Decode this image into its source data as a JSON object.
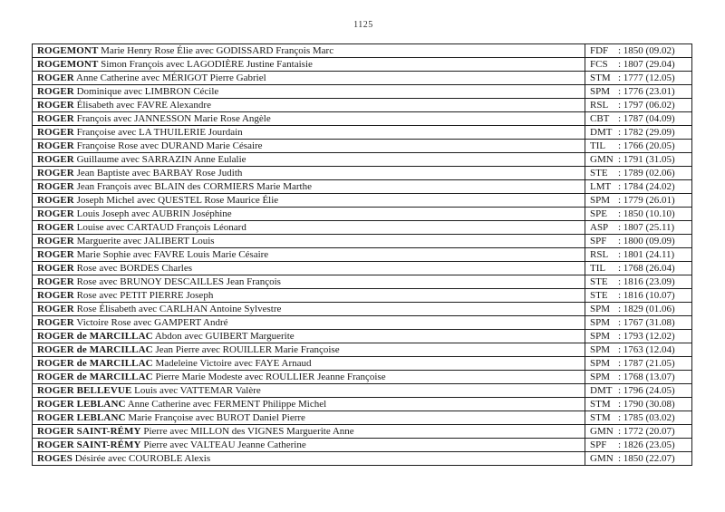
{
  "page": {
    "number": "1125"
  },
  "table": {
    "rows": [
      {
        "entry_bold": "ROGEMONT",
        "entry_rest": "Marie Henry Rose Élie avec GODISSARD François Marc",
        "code": "FDF",
        "ref": ": 1850 (09.02)"
      },
      {
        "entry_bold": "ROGEMONT",
        "entry_rest": "Simon François avec LAGODIÈRE Justine Fantaisie",
        "code": "FCS",
        "ref": ": 1807 (29.04)"
      },
      {
        "entry_bold": "ROGER",
        "entry_rest": "Anne Catherine avec MÉRIGOT Pierre Gabriel",
        "code": "STM",
        "ref": ": 1777 (12.05)"
      },
      {
        "entry_bold": "ROGER",
        "entry_rest": "Dominique avec LIMBRON Cécile",
        "code": "SPM",
        "ref": ": 1776 (23.01)"
      },
      {
        "entry_bold": "ROGER",
        "entry_rest": "Élisabeth avec FAVRE Alexandre",
        "code": "RSL",
        "ref": ": 1797 (06.02)"
      },
      {
        "entry_bold": "ROGER",
        "entry_rest": "François avec JANNESSON Marie Rose Angèle",
        "code": "CBT",
        "ref": ": 1787 (04.09)"
      },
      {
        "entry_bold": "ROGER",
        "entry_rest": "Françoise avec LA THUILERIE Jourdain",
        "code": "DMT",
        "ref": ": 1782 (29.09)"
      },
      {
        "entry_bold": "ROGER",
        "entry_rest": "Françoise Rose avec DURAND Marie Césaire",
        "code": "TIL",
        "ref": ": 1766 (20.05)"
      },
      {
        "entry_bold": "ROGER",
        "entry_rest": "Guillaume avec SARRAZIN Anne Eulalie",
        "code": "GMN",
        "ref": ": 1791 (31.05)"
      },
      {
        "entry_bold": "ROGER",
        "entry_rest": "Jean Baptiste avec BARBAY Rose Judith",
        "code": "STE",
        "ref": ": 1789 (02.06)"
      },
      {
        "entry_bold": "ROGER",
        "entry_rest": "Jean François avec BLAIN des CORMIERS Marie Marthe",
        "code": "LMT",
        "ref": ": 1784 (24.02)"
      },
      {
        "entry_bold": "ROGER",
        "entry_rest": "Joseph Michel avec QUESTEL Rose Maurice Élie",
        "code": "SPM",
        "ref": ": 1779 (26.01)"
      },
      {
        "entry_bold": "ROGER",
        "entry_rest": "Louis Joseph avec AUBRIN Joséphine",
        "code": "SPE",
        "ref": ": 1850 (10.10)"
      },
      {
        "entry_bold": "ROGER",
        "entry_rest": "Louise avec CARTAUD François Léonard",
        "code": "ASP",
        "ref": ": 1807 (25.11)"
      },
      {
        "entry_bold": "ROGER",
        "entry_rest": "Marguerite avec JALIBERT Louis",
        "code": "SPF",
        "ref": ": 1800 (09.09)"
      },
      {
        "entry_bold": "ROGER",
        "entry_rest": "Marie Sophie avec FAVRE Louis Marie Césaire",
        "code": "RSL",
        "ref": ": 1801 (24.11)"
      },
      {
        "entry_bold": "ROGER",
        "entry_rest": "Rose avec BORDES Charles",
        "code": "TIL",
        "ref": ": 1768 (26.04)"
      },
      {
        "entry_bold": "ROGER",
        "entry_rest": "Rose avec BRUNOY DESCAILLES Jean François",
        "code": "STE",
        "ref": ": 1816 (23.09)"
      },
      {
        "entry_bold": "ROGER",
        "entry_rest": "Rose avec PETIT PIERRE Joseph",
        "code": "STE",
        "ref": ": 1816 (10.07)"
      },
      {
        "entry_bold": "ROGER",
        "entry_rest": "Rose Élisabeth avec CARLHAN Antoine Sylvestre",
        "code": "SPM",
        "ref": ": 1829 (01.06)"
      },
      {
        "entry_bold": "ROGER",
        "entry_rest": "Victoire Rose avec GAMPERT André",
        "code": "SPM",
        "ref": ": 1767 (31.08)"
      },
      {
        "entry_bold": "ROGER de MARCILLAC",
        "entry_rest": "Abdon avec GUIBERT Marguerite",
        "code": "SPM",
        "ref": ": 1793 (12.02)"
      },
      {
        "entry_bold": "ROGER de MARCILLAC",
        "entry_rest": "Jean Pierre avec ROUILLER Marie Françoise",
        "code": "SPM",
        "ref": ": 1763 (12.04)"
      },
      {
        "entry_bold": "ROGER de MARCILLAC",
        "entry_rest": "Madeleine Victoire avec FAYE Arnaud",
        "code": "SPM",
        "ref": ": 1787 (21.05)"
      },
      {
        "entry_bold": "ROGER de MARCILLAC",
        "entry_rest": "Pierre Marie Modeste avec ROULLIER Jeanne Françoise",
        "code": "SPM",
        "ref": ": 1768 (13.07)"
      },
      {
        "entry_bold": "ROGER BELLEVUE",
        "entry_rest": "Louis avec VATTEMAR Valère",
        "code": "DMT",
        "ref": ": 1796 (24.05)"
      },
      {
        "entry_bold": "ROGER LEBLANC",
        "entry_rest": "Anne Catherine avec FERMENT Philippe Michel",
        "code": "STM",
        "ref": ": 1790 (30.08)"
      },
      {
        "entry_bold": "ROGER LEBLANC",
        "entry_rest": "Marie Françoise avec BUROT Daniel Pierre",
        "code": "STM",
        "ref": ": 1785 (03.02)"
      },
      {
        "entry_bold": "ROGER SAINT-RÉMY",
        "entry_rest": "Pierre avec MILLON des VIGNES Marguerite Anne",
        "code": "GMN",
        "ref": ": 1772 (20.07)"
      },
      {
        "entry_bold": "ROGER SAINT-RÉMY",
        "entry_rest": "Pierre avec VALTEAU Jeanne Catherine",
        "code": "SPF",
        "ref": ": 1826 (23.05)"
      },
      {
        "entry_bold": "ROGES",
        "entry_rest": "Désirée avec COUROBLE Alexis",
        "code": "GMN",
        "ref": ": 1850 (22.07)"
      }
    ]
  }
}
